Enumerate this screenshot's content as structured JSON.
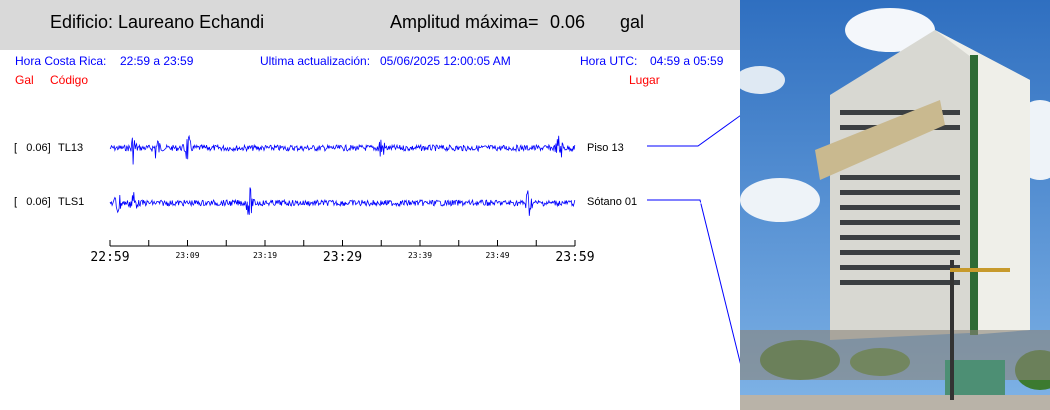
{
  "header": {
    "building": "Edificio: Laureano Echandi",
    "amplitude_label": "Amplitud máxima=",
    "amplitude_value": "0.06",
    "amplitude_unit": "gal"
  },
  "info": {
    "cr_time_label": "Hora Costa Rica:",
    "cr_time_range": "22:59 a 23:59",
    "update_label": "Ultima actualización:",
    "update_value": "05/06/2025 12:00:05 AM",
    "utc_label": "Hora UTC:",
    "utc_range": "04:59 a 05:59"
  },
  "columns": {
    "gal": "Gal",
    "code": "Código",
    "place": "Lugar"
  },
  "colors": {
    "trace": "#0000ff",
    "info": "#0000ff",
    "columns": "#ff0000",
    "header_bg": "#d9d9d9"
  },
  "chart_data": {
    "type": "line",
    "title": "",
    "x_ticks_major": [
      "22:59",
      "23:29",
      "23:59"
    ],
    "x_ticks_minor": [
      "23:09",
      "23:19",
      "23:39",
      "23:49"
    ],
    "x_range_minutes": [
      0,
      60
    ],
    "series": [
      {
        "code": "TL13",
        "gal": "0.06",
        "place": "Piso 13",
        "peak_amplitude_gal": 0.06,
        "bursts_minutes": [
          3,
          6,
          10,
          35,
          58
        ]
      },
      {
        "code": "TLS1",
        "gal": "0.06",
        "place": "Sótano 01",
        "peak_amplitude_gal": 0.06,
        "bursts_minutes": [
          1,
          3,
          18,
          54
        ]
      }
    ]
  },
  "photo": {
    "subject": "building-photo"
  }
}
